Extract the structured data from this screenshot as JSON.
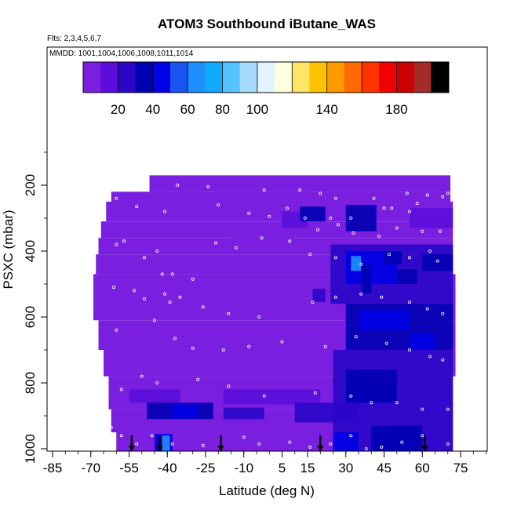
{
  "chart_data": {
    "type": "heatmap",
    "title": "ATOM3 Southbound iButane_WAS",
    "flights_label": "Flts: 2,3,4,5,6,7",
    "dates_label": "MMDD: 1001,1004,1006,1008,1011,1014",
    "xlabel": "Latitude (deg N)",
    "ylabel": "PSXC (mbar)",
    "xlim": [
      -85,
      85
    ],
    "ylim": [
      1010,
      50
    ],
    "y_reversed": true,
    "x_ticks": [
      "-85",
      "-70",
      "-55",
      "-40",
      "-25",
      "-10",
      "5",
      "15",
      "30",
      "45",
      "60",
      "75"
    ],
    "x_tick_values": [
      -85,
      -70,
      -55,
      -40,
      -25,
      -10,
      5,
      15,
      30,
      45,
      60,
      75
    ],
    "y_ticks": [
      "200",
      "400",
      "600",
      "800",
      "1000"
    ],
    "y_tick_values": [
      200,
      400,
      600,
      800,
      1000
    ],
    "colorbar": {
      "range": [
        0,
        210
      ],
      "tick_labels": [
        "20",
        "40",
        "60",
        "80",
        "100",
        "140",
        "180"
      ],
      "tick_values": [
        20,
        40,
        60,
        80,
        100,
        140,
        180
      ],
      "colors": [
        "#7a1fe0",
        "#5a0ddb",
        "#2a06c9",
        "#0000b3",
        "#0000e6",
        "#1a55f0",
        "#1e8fff",
        "#10aaff",
        "#55c3ff",
        "#a6dbff",
        "#e3f3ff",
        "#ffffe0",
        "#ffe566",
        "#ffc200",
        "#ff9900",
        "#ff6a00",
        "#ff3300",
        "#f00000",
        "#cc0000",
        "#a52a2a"
      ],
      "boundaries": [
        0,
        10,
        20,
        30,
        40,
        50,
        60,
        70,
        80,
        90,
        100,
        110,
        120,
        130,
        140,
        150,
        160,
        170,
        180,
        190,
        200,
        210
      ]
    },
    "flight_arrow_latitudes": [
      -54,
      -43,
      -19,
      20,
      61
    ],
    "background_value": 4,
    "coverage": [
      {
        "p_top": 170,
        "p_bot": 220,
        "lat_min": -47,
        "lat_max": 71
      },
      {
        "p_top": 220,
        "p_bot": 250,
        "lat_min": -62,
        "lat_max": 71
      },
      {
        "p_top": 250,
        "p_bot": 310,
        "lat_min": -64,
        "lat_max": 72
      },
      {
        "p_top": 310,
        "p_bot": 360,
        "lat_min": -66,
        "lat_max": 72
      },
      {
        "p_top": 360,
        "p_bot": 410,
        "lat_min": -67,
        "lat_max": 72
      },
      {
        "p_top": 410,
        "p_bot": 470,
        "lat_min": -68,
        "lat_max": 72
      },
      {
        "p_top": 470,
        "p_bot": 610,
        "lat_min": -69,
        "lat_max": 73
      },
      {
        "p_top": 610,
        "p_bot": 700,
        "lat_min": -67,
        "lat_max": 73
      },
      {
        "p_top": 700,
        "p_bot": 780,
        "lat_min": -65,
        "lat_max": 73
      },
      {
        "p_top": 780,
        "p_bot": 880,
        "lat_min": -63,
        "lat_max": 72
      },
      {
        "p_top": 880,
        "p_bot": 950,
        "lat_min": -62,
        "lat_max": 72
      },
      {
        "p_top": 950,
        "p_bot": 1010,
        "lat_min": -60,
        "lat_max": 72
      }
    ],
    "patches": [
      {
        "lat": [
          -55,
          -35
        ],
        "p": [
          820,
          860
        ],
        "value": 10
      },
      {
        "lat": [
          -48,
          -22
        ],
        "p": [
          860,
          910
        ],
        "value": 36
      },
      {
        "lat": [
          -38,
          -28
        ],
        "p": [
          865,
          905
        ],
        "value": 48
      },
      {
        "lat": [
          -18,
          -2
        ],
        "p": [
          875,
          910
        ],
        "value": 22
      },
      {
        "lat": [
          -18,
          20
        ],
        "p": [
          820,
          865
        ],
        "value": 14
      },
      {
        "lat": [
          10,
          35
        ],
        "p": [
          860,
          920
        ],
        "value": 24
      },
      {
        "lat": [
          -45,
          -38
        ],
        "p": [
          955,
          1010
        ],
        "value": 40
      },
      {
        "lat": [
          -42,
          -39
        ],
        "p": [
          960,
          1010
        ],
        "value": 62
      },
      {
        "lat": [
          5,
          15
        ],
        "p": [
          280,
          330
        ],
        "value": 12
      },
      {
        "lat": [
          -15,
          10
        ],
        "p": [
          330,
          380
        ],
        "value": 9
      },
      {
        "lat": [
          12,
          22
        ],
        "p": [
          265,
          310
        ],
        "value": 38
      },
      {
        "lat": [
          17,
          22
        ],
        "p": [
          515,
          555
        ],
        "value": 28
      },
      {
        "lat": [
          30,
          42
        ],
        "p": [
          260,
          340
        ],
        "value": 36
      },
      {
        "lat": [
          24,
          72
        ],
        "p": [
          380,
          560
        ],
        "value": 22
      },
      {
        "lat": [
          30,
          50
        ],
        "p": [
          400,
          500
        ],
        "value": 44
      },
      {
        "lat": [
          32,
          36
        ],
        "p": [
          415,
          460
        ],
        "value": 62
      },
      {
        "lat": [
          36,
          40
        ],
        "p": [
          440,
          530
        ],
        "value": 32
      },
      {
        "lat": [
          45,
          52
        ],
        "p": [
          400,
          440
        ],
        "value": 30
      },
      {
        "lat": [
          50,
          58
        ],
        "p": [
          455,
          500
        ],
        "value": 38
      },
      {
        "lat": [
          60,
          72
        ],
        "p": [
          410,
          460
        ],
        "value": 36
      },
      {
        "lat": [
          30,
          72
        ],
        "p": [
          560,
          700
        ],
        "value": 30
      },
      {
        "lat": [
          35,
          55
        ],
        "p": [
          580,
          640
        ],
        "value": 40
      },
      {
        "lat": [
          55,
          65
        ],
        "p": [
          650,
          700
        ],
        "value": 46
      },
      {
        "lat": [
          25,
          72
        ],
        "p": [
          700,
          1010
        ],
        "value": 26
      },
      {
        "lat": [
          30,
          50
        ],
        "p": [
          760,
          860
        ],
        "value": 38
      },
      {
        "lat": [
          40,
          60
        ],
        "p": [
          930,
          1010
        ],
        "value": 34
      },
      {
        "lat": [
          25,
          35
        ],
        "p": [
          950,
          1010
        ],
        "value": 44
      },
      {
        "lat": [
          55,
          72
        ],
        "p": [
          270,
          330
        ],
        "value": 16
      }
    ],
    "sample_points": [
      [
        -36,
        200
      ],
      [
        -24,
        205
      ],
      [
        -2,
        215
      ],
      [
        12,
        215
      ],
      [
        20,
        225
      ],
      [
        26,
        240
      ],
      [
        41,
        240
      ],
      [
        54,
        225
      ],
      [
        62,
        230
      ],
      [
        68,
        235
      ],
      [
        70,
        225
      ],
      [
        -41,
        280
      ],
      [
        -52,
        265
      ],
      [
        -60,
        240
      ],
      [
        -20,
        260
      ],
      [
        -8,
        285
      ],
      [
        0,
        295
      ],
      [
        7,
        270
      ],
      [
        14,
        300
      ],
      [
        24,
        300
      ],
      [
        32,
        300
      ],
      [
        45,
        270
      ],
      [
        48,
        270
      ],
      [
        55,
        280
      ],
      [
        58,
        255
      ],
      [
        19,
        335
      ],
      [
        27,
        320
      ],
      [
        33,
        345
      ],
      [
        43,
        355
      ],
      [
        50,
        330
      ],
      [
        60,
        340
      ],
      [
        67,
        340
      ],
      [
        -60,
        380
      ],
      [
        -49,
        420
      ],
      [
        -57,
        370
      ],
      [
        -44,
        400
      ],
      [
        -42,
        470
      ],
      [
        -38,
        470
      ],
      [
        -30,
        485
      ],
      [
        -41,
        530
      ],
      [
        -39,
        555
      ],
      [
        -21,
        375
      ],
      [
        -13,
        390
      ],
      [
        -3,
        360
      ],
      [
        8,
        370
      ],
      [
        16,
        410
      ],
      [
        26,
        420
      ],
      [
        36,
        440
      ],
      [
        47,
        410
      ],
      [
        55,
        420
      ],
      [
        63,
        400
      ],
      [
        66,
        430
      ],
      [
        -61,
        510
      ],
      [
        -53,
        520
      ],
      [
        -49,
        545
      ],
      [
        -35,
        540
      ],
      [
        -26,
        570
      ],
      [
        -16,
        590
      ],
      [
        -4,
        600
      ],
      [
        17,
        555
      ],
      [
        26,
        540
      ],
      [
        36,
        530
      ],
      [
        44,
        540
      ],
      [
        55,
        555
      ],
      [
        62,
        575
      ],
      [
        68,
        590
      ],
      [
        -60,
        640
      ],
      [
        -45,
        610
      ],
      [
        -37,
        665
      ],
      [
        -30,
        695
      ],
      [
        -18,
        700
      ],
      [
        -8,
        690
      ],
      [
        5,
        675
      ],
      [
        22,
        690
      ],
      [
        34,
        660
      ],
      [
        46,
        680
      ],
      [
        55,
        700
      ],
      [
        63,
        720
      ],
      [
        68,
        730
      ],
      [
        -58,
        820
      ],
      [
        -50,
        780
      ],
      [
        -44,
        800
      ],
      [
        -28,
        790
      ],
      [
        -16,
        810
      ],
      [
        -2,
        840
      ],
      [
        18,
        830
      ],
      [
        32,
        840
      ],
      [
        40,
        860
      ],
      [
        50,
        860
      ],
      [
        60,
        880
      ],
      [
        70,
        880
      ],
      [
        -62,
        935
      ],
      [
        -58,
        960
      ],
      [
        -52,
        985
      ],
      [
        -46,
        960
      ],
      [
        -38,
        985
      ],
      [
        -26,
        990
      ],
      [
        -10,
        965
      ],
      [
        -4,
        985
      ],
      [
        8,
        980
      ],
      [
        16,
        995
      ],
      [
        24,
        985
      ],
      [
        32,
        960
      ],
      [
        38,
        1000
      ],
      [
        44,
        995
      ],
      [
        52,
        980
      ],
      [
        60,
        960
      ],
      [
        70,
        985
      ]
    ]
  }
}
